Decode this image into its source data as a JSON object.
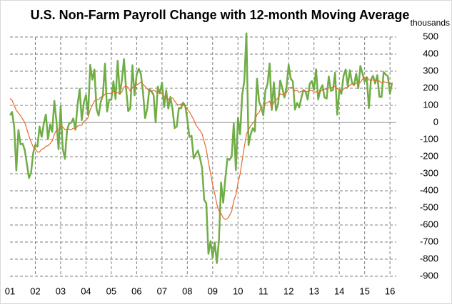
{
  "chart_data": {
    "type": "line",
    "title": "U.S. Non-Farm Payroll Change  with 12-month Moving Average",
    "y_label": "thousands",
    "x": [
      2001,
      2001.083,
      2001.167,
      2001.25,
      2001.333,
      2001.417,
      2001.5,
      2001.583,
      2001.667,
      2001.75,
      2001.833,
      2001.917,
      2002,
      2002.083,
      2002.167,
      2002.25,
      2002.333,
      2002.417,
      2002.5,
      2002.583,
      2002.667,
      2002.75,
      2002.833,
      2002.917,
      2003,
      2003.083,
      2003.167,
      2003.25,
      2003.333,
      2003.417,
      2003.5,
      2003.583,
      2003.667,
      2003.75,
      2003.833,
      2003.917,
      2004,
      2004.083,
      2004.167,
      2004.25,
      2004.333,
      2004.417,
      2004.5,
      2004.583,
      2004.667,
      2004.75,
      2004.833,
      2004.917,
      2005,
      2005.083,
      2005.167,
      2005.25,
      2005.333,
      2005.417,
      2005.5,
      2005.583,
      2005.667,
      2005.75,
      2005.833,
      2005.917,
      2006,
      2006.083,
      2006.167,
      2006.25,
      2006.333,
      2006.417,
      2006.5,
      2006.583,
      2006.667,
      2006.75,
      2006.833,
      2006.917,
      2007,
      2007.083,
      2007.167,
      2007.25,
      2007.333,
      2007.417,
      2007.5,
      2007.583,
      2007.667,
      2007.75,
      2007.833,
      2007.917,
      2008,
      2008.083,
      2008.167,
      2008.25,
      2008.333,
      2008.417,
      2008.5,
      2008.583,
      2008.667,
      2008.75,
      2008.833,
      2008.917,
      2009,
      2009.083,
      2009.167,
      2009.25,
      2009.333,
      2009.417,
      2009.5,
      2009.583,
      2009.667,
      2009.75,
      2009.833,
      2009.917,
      2010,
      2010.083,
      2010.167,
      2010.25,
      2010.333,
      2010.417,
      2010.5,
      2010.583,
      2010.667,
      2010.75,
      2010.833,
      2010.917,
      2011,
      2011.083,
      2011.167,
      2011.25,
      2011.333,
      2011.417,
      2011.5,
      2011.583,
      2011.667,
      2011.75,
      2011.833,
      2011.917,
      2012,
      2012.083,
      2012.167,
      2012.25,
      2012.333,
      2012.417,
      2012.5,
      2012.583,
      2012.667,
      2012.75,
      2012.833,
      2012.917,
      2013,
      2013.083,
      2013.167,
      2013.25,
      2013.333,
      2013.417,
      2013.5,
      2013.583,
      2013.667,
      2013.75,
      2013.833,
      2013.917,
      2014,
      2014.083,
      2014.167,
      2014.25,
      2014.333,
      2014.417,
      2014.5,
      2014.583,
      2014.667,
      2014.75,
      2014.833,
      2014.917,
      2015,
      2015.083,
      2015.167,
      2015.25,
      2015.333,
      2015.417,
      2015.5,
      2015.583,
      2015.667,
      2015.75,
      2015.833,
      2015.917,
      2016,
      2016.083
    ],
    "series": [
      {
        "color": "#70ad47",
        "width": 2.5,
        "values": [
          42,
          61,
          -30,
          -281,
          -44,
          -128,
          -125,
          -160,
          -244,
          -325,
          -292,
          -178,
          -131,
          -142,
          -24,
          -85,
          -7,
          46,
          -98,
          -11,
          -55,
          127,
          8,
          -157,
          95,
          -154,
          -213,
          -49,
          -6,
          -1,
          24,
          -43,
          103,
          196,
          13,
          116,
          161,
          44,
          337,
          250,
          310,
          78,
          40,
          121,
          158,
          345,
          64,
          134,
          132,
          241,
          138,
          361,
          167,
          247,
          371,
          198,
          66,
          84,
          335,
          158,
          279,
          315,
          285,
          178,
          25,
          80,
          196,
          182,
          162,
          0,
          209,
          171,
          234,
          90,
          189,
          81,
          149,
          76,
          -33,
          -24,
          86,
          82,
          116,
          98,
          17,
          -85,
          -78,
          -210,
          -185,
          -165,
          -209,
          -266,
          -452,
          -473,
          -769,
          -695,
          -791,
          -703,
          -823,
          -686,
          -351,
          -470,
          -329,
          -212,
          -219,
          -200,
          -7,
          -279,
          28,
          -69,
          163,
          243,
          522,
          -133,
          -70,
          -34,
          -52,
          257,
          123,
          88,
          42,
          188,
          225,
          346,
          73,
          235,
          70,
          107,
          246,
          202,
          146,
          207,
          338,
          257,
          239,
          75,
          115,
          87,
          143,
          190,
          181,
          134,
          226,
          243,
          190,
          311,
          135,
          192,
          218,
          146,
          140,
          269,
          185,
          189,
          291,
          45,
          187,
          168,
          272,
          310,
          213,
          306,
          232,
          218,
          286,
          200,
          331,
          286,
          239,
          265,
          84,
          251,
          273,
          228,
          277,
          150,
          149,
          295,
          280,
          271,
          168,
          233
        ]
      },
      {
        "color": "#e36c2c",
        "width": 1.2,
        "values": [
          140,
          130,
          100,
          70,
          55,
          40,
          20,
          0,
          -40,
          -80,
          -115,
          -142,
          -156,
          -173,
          -173,
          -156,
          -153,
          -139,
          -136,
          -124,
          -108,
          -70,
          -45,
          -44,
          -25,
          -26,
          -42,
          -39,
          -39,
          -43,
          -33,
          -35,
          -22,
          -16,
          -16,
          7,
          12,
          29,
          75,
          100,
          126,
          133,
          134,
          148,
          152,
          165,
          169,
          170,
          168,
          184,
          168,
          177,
          165,
          179,
          207,
          213,
          205,
          183,
          206,
          208,
          220,
          226,
          238,
          223,
          211,
          197,
          183,
          181,
          189,
          182,
          172,
          173,
          169,
          150,
          142,
          134,
          144,
          144,
          125,
          108,
          102,
          109,
          101,
          95,
          77,
          62,
          40,
          16,
          -12,
          -32,
          -47,
          -67,
          -112,
          -158,
          -232,
          -298,
          -365,
          -417,
          -479,
          -519,
          -533,
          -558,
          -568,
          -563,
          -544,
          -521,
          -458,
          -423,
          -355,
          -302,
          -220,
          -143,
          -70,
          -42,
          -20,
          -5,
          9,
          47,
          58,
          89,
          90,
          111,
          116,
          125,
          88,
          119,
          131,
          143,
          168,
          163,
          165,
          175,
          200,
          206,
          207,
          184,
          188,
          176,
          182,
          189,
          184,
          178,
          185,
          188,
          176,
          180,
          171,
          181,
          190,
          195,
          195,
          202,
          202,
          207,
          212,
          196,
          196,
          184,
          195,
          205,
          205,
          218,
          226,
          222,
          230,
          231,
          234,
          254,
          258,
          266,
          250,
          245,
          250,
          244,
          248,
          242,
          231,
          239,
          235,
          234,
          228,
          225
        ]
      }
    ],
    "xlim": [
      2001,
      2016.25
    ],
    "xticks": [
      {
        "value": 2001,
        "label": "01"
      },
      {
        "value": 2002,
        "label": "02"
      },
      {
        "value": 2003,
        "label": "03"
      },
      {
        "value": 2004,
        "label": "04"
      },
      {
        "value": 2005,
        "label": "05"
      },
      {
        "value": 2006,
        "label": "06"
      },
      {
        "value": 2007,
        "label": "07"
      },
      {
        "value": 2008,
        "label": "08"
      },
      {
        "value": 2009,
        "label": "09"
      },
      {
        "value": 2010,
        "label": "10"
      },
      {
        "value": 2011,
        "label": "11"
      },
      {
        "value": 2012,
        "label": "12"
      },
      {
        "value": 2013,
        "label": "13"
      },
      {
        "value": 2014,
        "label": "14"
      },
      {
        "value": 2015,
        "label": "15"
      },
      {
        "value": 2016,
        "label": "16"
      }
    ],
    "ylim": [
      -900,
      500
    ],
    "yticks": [
      -900,
      -800,
      -700,
      -600,
      -500,
      -400,
      -300,
      -200,
      -100,
      0,
      100,
      200,
      300,
      400,
      500
    ],
    "grid": true
  }
}
